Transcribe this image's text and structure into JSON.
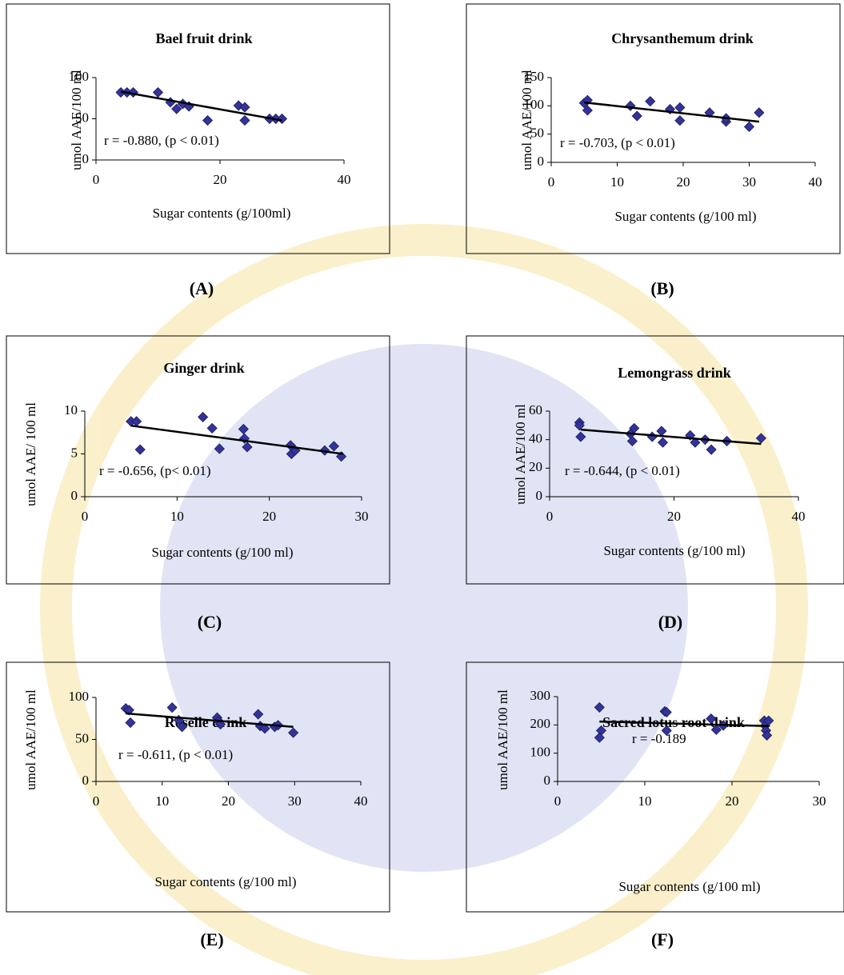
{
  "chart_data": [
    {
      "type": "scatter",
      "title": "Bael fruit drink",
      "xlabel": "Sugar contents (g/100ml)",
      "ylabel": "umol AAE/100 ml",
      "annotation": "r = -0.880, (p < 0.01)",
      "panel_label": "(A)",
      "color": "#333399",
      "line_color": "#000000",
      "x": [
        4,
        5,
        6,
        10,
        12,
        13,
        14,
        15,
        18,
        23,
        24,
        24,
        28,
        29,
        30
      ],
      "y": [
        82,
        82,
        82,
        82,
        70,
        62,
        68,
        65,
        48,
        66,
        64,
        48,
        50,
        50,
        50
      ],
      "trendline": {
        "x": [
          4,
          30
        ],
        "y": [
          83,
          48
        ]
      },
      "xlim": [
        0,
        40
      ],
      "ylim": [
        0,
        100
      ],
      "xticks": [
        0,
        20,
        40
      ],
      "yticks": [
        0,
        50,
        100
      ]
    },
    {
      "type": "scatter",
      "title": "Chrysanthemum drink",
      "xlabel": "Sugar contents (g/100 ml)",
      "ylabel": "umol AAE/100 ml",
      "annotation": "r = -0.703, (p < 0.01)",
      "panel_label": "(B)",
      "color": "#333399",
      "line_color": "#000000",
      "x": [
        5,
        5.5,
        5.5,
        12,
        13,
        15,
        18,
        19.5,
        19.5,
        24,
        26.5,
        26.5,
        30,
        31.5
      ],
      "y": [
        105,
        110,
        92,
        100,
        82,
        108,
        94,
        97,
        74,
        88,
        72,
        78,
        63,
        88
      ],
      "trendline": {
        "x": [
          5,
          31.5
        ],
        "y": [
          106,
          72
        ]
      },
      "xlim": [
        0,
        40
      ],
      "ylim": [
        0,
        150
      ],
      "xticks": [
        0,
        10,
        20,
        30,
        40
      ],
      "yticks": [
        0,
        50,
        100,
        150
      ]
    },
    {
      "type": "scatter",
      "title": "Ginger drink",
      "xlabel": "Sugar contents (g/100 ml)",
      "ylabel": "umol AAE/ 100 ml",
      "annotation": "r = -0.656, (p< 0.01)",
      "panel_label": "(C)",
      "color": "#333399",
      "line_color": "#000000",
      "x": [
        5,
        5.6,
        6,
        12.8,
        13.8,
        14.6,
        17.2,
        17.3,
        17.6,
        22.3,
        22.4,
        22.8,
        26,
        27,
        27.8
      ],
      "y": [
        8.8,
        8.8,
        5.5,
        9.3,
        8,
        5.6,
        7.9,
        6.8,
        5.8,
        6,
        5,
        5.4,
        5.4,
        5.9,
        4.7
      ],
      "trendline": {
        "x": [
          5,
          28
        ],
        "y": [
          8.3,
          5
        ]
      },
      "xlim": [
        0,
        30
      ],
      "ylim": [
        0,
        10
      ],
      "xticks": [
        0,
        10,
        20,
        30
      ],
      "yticks": [
        0,
        5,
        10
      ]
    },
    {
      "type": "scatter",
      "title": "Lemongrass drink",
      "xlabel": "Sugar contents (g/100 ml)",
      "ylabel": "umol AAE/100 ml",
      "annotation": "r = -0.644, (p < 0.01)",
      "panel_label": "(D)",
      "color": "#333399",
      "line_color": "#000000",
      "x": [
        4.8,
        4.8,
        5,
        13,
        13.3,
        13.6,
        16.5,
        18,
        18.2,
        22.6,
        23.4,
        25,
        26,
        28.5,
        34
      ],
      "y": [
        52,
        50,
        42,
        44,
        39,
        48,
        42,
        46,
        38,
        43,
        38,
        40,
        33,
        39,
        41
      ],
      "trendline": {
        "x": [
          5,
          34
        ],
        "y": [
          47,
          37
        ]
      },
      "xlim": [
        0,
        40
      ],
      "ylim": [
        0,
        60
      ],
      "xticks": [
        0,
        20,
        40
      ],
      "yticks": [
        0,
        20,
        40,
        60
      ]
    },
    {
      "type": "scatter",
      "title": "Roselle drink",
      "xlabel": "Sugar contents (g/100 ml)",
      "ylabel": "umol AAE/100 ml",
      "annotation": "r = -0.611, (p < 0.01)",
      "panel_label": "(E)",
      "color": "#333399",
      "line_color": "#000000",
      "x": [
        4.5,
        5,
        5.2,
        11.5,
        12.5,
        13,
        18.3,
        18.5,
        18.8,
        24.5,
        24.8,
        25.5,
        27,
        27.5,
        29.8
      ],
      "y": [
        87,
        85,
        70,
        88,
        73,
        65,
        76,
        72,
        68,
        80,
        66,
        63,
        65,
        67,
        58
      ],
      "trendline": {
        "x": [
          4.5,
          29.8
        ],
        "y": [
          81,
          65
        ]
      },
      "xlim": [
        0,
        40
      ],
      "ylim": [
        0,
        100
      ],
      "xticks": [
        0,
        10,
        20,
        30,
        40
      ],
      "yticks": [
        0,
        50,
        100
      ]
    },
    {
      "type": "scatter",
      "title": "Sacred lotus root drink",
      "xlabel": "Sugar contents (g/100 ml)",
      "ylabel": "umol AAE/100 ml",
      "annotation": "r = -0.189",
      "panel_label": "(F)",
      "color": "#333399",
      "line_color": "#000000",
      "x": [
        4.8,
        5,
        4.8,
        12.3,
        12.5,
        12.5,
        17.6,
        18.2,
        19,
        23.7,
        23.8,
        23.9,
        24,
        24.2
      ],
      "y": [
        262,
        180,
        155,
        248,
        245,
        180,
        222,
        183,
        198,
        215,
        197,
        180,
        163,
        215
      ],
      "trendline": {
        "x": [
          4.8,
          24.2
        ],
        "y": [
          212,
          196
        ]
      },
      "xlim": [
        0,
        30
      ],
      "ylim": [
        0,
        300
      ],
      "xticks": [
        0,
        10,
        20,
        30
      ],
      "yticks": [
        0,
        100,
        200,
        300
      ]
    }
  ]
}
